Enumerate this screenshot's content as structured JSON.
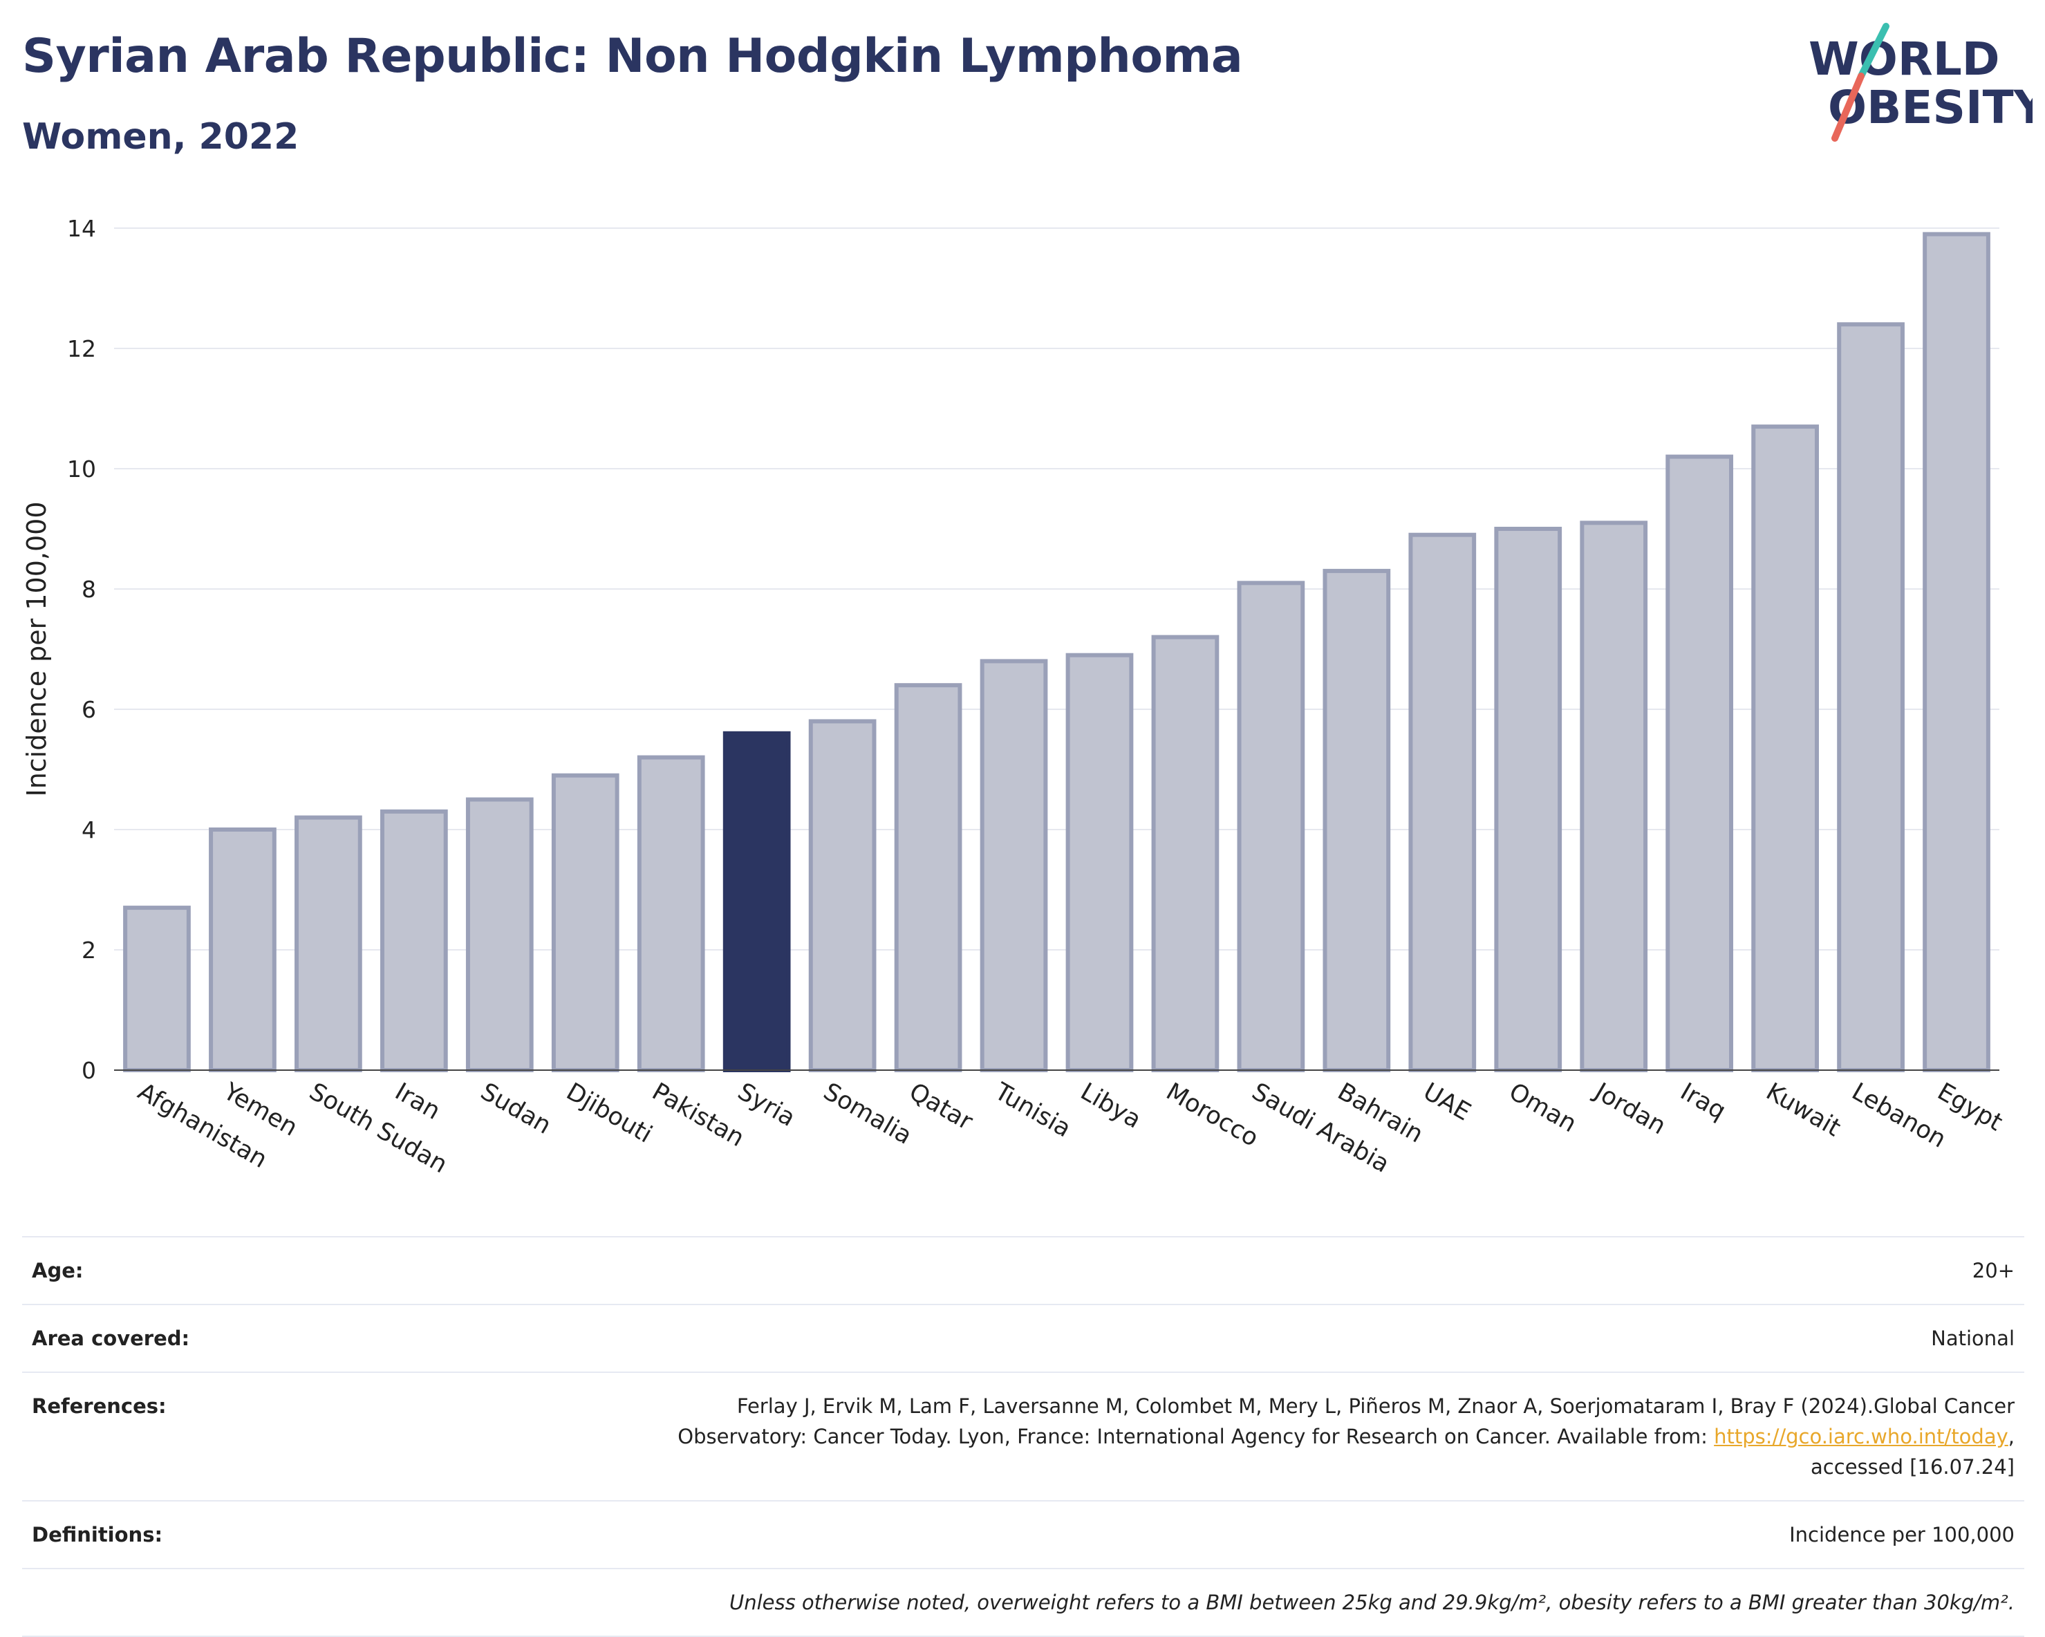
{
  "header": {
    "title": "Syrian Arab Republic: Non Hodgkin Lymphoma",
    "subtitle": "Women, 2022"
  },
  "logo": {
    "line1": "WORLD",
    "line2": "OBESITY",
    "colors": {
      "text": "#2b3561",
      "slash_top": "#3bbfb0",
      "slash_bottom": "#e8675a"
    }
  },
  "chart_data": {
    "type": "bar",
    "ylabel": "Incidence per 100,000",
    "xlabel": "",
    "ylim": [
      0,
      14
    ],
    "yticks": [
      0,
      2,
      4,
      6,
      8,
      10,
      12,
      14
    ],
    "grid": true,
    "highlight": "Syria",
    "colors": {
      "bar": "#c0c3d0",
      "bar_edge": "#9aa0b8",
      "highlight": "#2b3561",
      "grid": "#e6e8ef"
    },
    "categories": [
      "Afghanistan",
      "Yemen",
      "South Sudan",
      "Iran",
      "Sudan",
      "Djibouti",
      "Pakistan",
      "Syria",
      "Somalia",
      "Qatar",
      "Tunisia",
      "Libya",
      "Morocco",
      "Saudi Arabia",
      "Bahrain",
      "UAE",
      "Oman",
      "Jordan",
      "Iraq",
      "Kuwait",
      "Lebanon",
      "Egypt"
    ],
    "values": [
      2.7,
      4.0,
      4.2,
      4.3,
      4.5,
      4.9,
      5.2,
      5.6,
      5.8,
      6.4,
      6.8,
      6.9,
      7.2,
      8.1,
      8.3,
      8.9,
      9.0,
      9.1,
      10.2,
      10.7,
      12.4,
      13.9
    ]
  },
  "info": {
    "age_label": "Age:",
    "age_value": "20+",
    "area_label": "Area covered:",
    "area_value": "National",
    "references_label": "References:",
    "references_line1": "Ferlay J, Ervik M, Lam F, Laversanne M, Colombet M, Mery L, Piñeros M, Znaor A, Soerjomataram I, Bray F (2024).Global Cancer",
    "references_line2": "Observatory: Cancer Today. Lyon, France: International Agency for Research on Cancer. Available from: ",
    "references_link": "https://gco.iarc.who.int/today",
    "references_line3_suffix": ",",
    "references_line4": "accessed [16.07.24]",
    "definitions_label": "Definitions:",
    "definitions_value": "Incidence per 100,000",
    "note": "Unless otherwise noted, overweight refers to a BMI between 25kg and 29.9kg/m², obesity refers to a BMI greater than 30kg/m²."
  }
}
